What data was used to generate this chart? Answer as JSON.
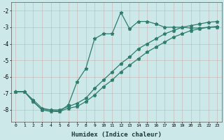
{
  "xlabel": "Humidex (Indice chaleur)",
  "bg_color": "#cce8e8",
  "line_color": "#2e7d6e",
  "xlim": [
    -0.5,
    23.5
  ],
  "ylim": [
    -8.7,
    -1.5
  ],
  "yticks": [
    -8,
    -7,
    -6,
    -5,
    -4,
    -3,
    -2
  ],
  "line1_x": [
    0,
    1,
    2,
    3,
    4,
    5,
    6,
    7,
    8,
    9,
    10,
    11,
    12,
    13,
    14,
    15,
    16,
    17,
    18,
    19,
    20,
    21,
    22,
    23
  ],
  "line1_y": [
    -6.9,
    -6.9,
    -7.5,
    -8.0,
    -8.0,
    -8.1,
    -7.7,
    -6.3,
    -5.5,
    -3.7,
    -3.4,
    -3.4,
    -2.1,
    -3.1,
    -2.65,
    -2.65,
    -2.8,
    -3.0,
    -3.0,
    -3.0,
    -3.05,
    -3.05,
    -3.0,
    -3.0
  ],
  "line2_x": [
    0,
    1,
    2,
    3,
    4,
    5,
    6,
    7,
    8,
    9,
    10,
    11,
    12,
    13,
    14,
    15,
    16,
    17,
    18,
    19,
    20,
    21,
    22,
    23
  ],
  "line2_y": [
    -6.9,
    -6.9,
    -7.5,
    -8.0,
    -8.1,
    -8.1,
    -7.9,
    -7.8,
    -7.5,
    -7.1,
    -6.6,
    -6.2,
    -5.7,
    -5.3,
    -4.9,
    -4.5,
    -4.2,
    -3.9,
    -3.6,
    -3.4,
    -3.2,
    -3.1,
    -3.0,
    -2.95
  ],
  "line3_x": [
    0,
    1,
    2,
    3,
    4,
    5,
    6,
    7,
    8,
    9,
    10,
    11,
    12,
    13,
    14,
    15,
    16,
    17,
    18,
    19,
    20,
    21,
    22,
    23
  ],
  "line3_y": [
    -6.9,
    -6.9,
    -7.4,
    -7.9,
    -8.0,
    -8.0,
    -7.8,
    -7.6,
    -7.3,
    -6.7,
    -6.2,
    -5.7,
    -5.2,
    -4.8,
    -4.3,
    -4.0,
    -3.7,
    -3.4,
    -3.2,
    -3.0,
    -2.9,
    -2.8,
    -2.7,
    -2.65
  ]
}
